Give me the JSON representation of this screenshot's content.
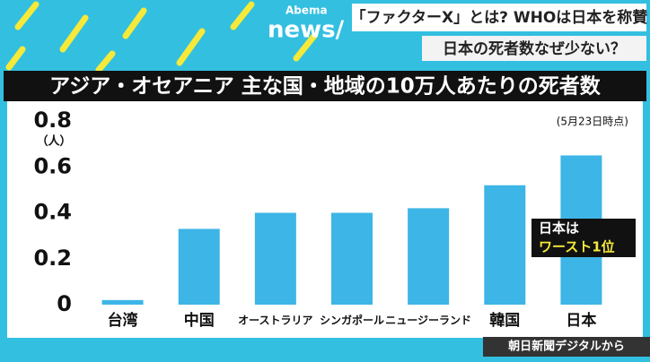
{
  "header": {
    "logo_top": "Abema",
    "logo_bottom": "news/",
    "headline": "「ファクターX」とは? WHOは日本を称賛",
    "subheadline": "日本の死者数なぜ少ない？"
  },
  "source": "朝日新聞デジタルから",
  "chart_data": {
    "type": "bar",
    "title": "アジア・オセアニア 主な国・地域の10万人あたりの死者数",
    "y_label": "（人）",
    "note": "(5月23日時点)",
    "categories": [
      "台湾",
      "中国",
      "オーストラリア",
      "シンガポール",
      "ニュージーランド",
      "韓国",
      "日本"
    ],
    "values": [
      0.02,
      0.33,
      0.4,
      0.4,
      0.42,
      0.52,
      0.65
    ],
    "color": "#3db5e6",
    "ylim": [
      0,
      0.8
    ],
    "yticks": [
      0,
      0.2,
      0.4,
      0.6,
      0.8
    ],
    "grid": false,
    "annotation": [
      "日本は",
      "ワースト1位"
    ]
  }
}
